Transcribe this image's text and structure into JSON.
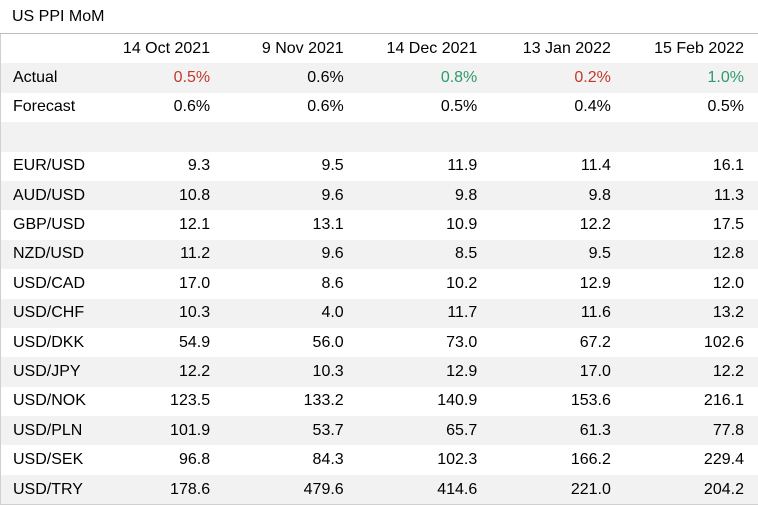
{
  "title": "US PPI MoM",
  "columns": [
    "14 Oct 2021",
    "9 Nov 2021",
    "14 Dec 2021",
    "13 Jan 2022",
    "15 Feb 2022"
  ],
  "colors": {
    "up": "#2e9a6a",
    "down": "#c0392b",
    "neutral": "#000000",
    "row_shade": "#f2f2f2"
  },
  "actual": {
    "label": "Actual",
    "values": [
      "0.5%",
      "0.6%",
      "0.8%",
      "0.2%",
      "1.0%"
    ],
    "tones": [
      "down",
      "neutral",
      "up",
      "down",
      "up"
    ]
  },
  "forecast": {
    "label": "Forecast",
    "values": [
      "0.6%",
      "0.6%",
      "0.5%",
      "0.4%",
      "0.5%"
    ]
  },
  "pairs": [
    {
      "label": "EUR/USD",
      "values": [
        "9.3",
        "9.5",
        "11.9",
        "11.4",
        "16.1"
      ]
    },
    {
      "label": "AUD/USD",
      "values": [
        "10.8",
        "9.6",
        "9.8",
        "9.8",
        "11.3"
      ]
    },
    {
      "label": "GBP/USD",
      "values": [
        "12.1",
        "13.1",
        "10.9",
        "12.2",
        "17.5"
      ]
    },
    {
      "label": "NZD/USD",
      "values": [
        "11.2",
        "9.6",
        "8.5",
        "9.5",
        "12.8"
      ]
    },
    {
      "label": "USD/CAD",
      "values": [
        "17.0",
        "8.6",
        "10.2",
        "12.9",
        "12.0"
      ]
    },
    {
      "label": "USD/CHF",
      "values": [
        "10.3",
        "4.0",
        "11.7",
        "11.6",
        "13.2"
      ]
    },
    {
      "label": "USD/DKK",
      "values": [
        "54.9",
        "56.0",
        "73.0",
        "67.2",
        "102.6"
      ]
    },
    {
      "label": "USD/JPY",
      "values": [
        "12.2",
        "10.3",
        "12.9",
        "17.0",
        "12.2"
      ]
    },
    {
      "label": "USD/NOK",
      "values": [
        "123.5",
        "133.2",
        "140.9",
        "153.6",
        "216.1"
      ]
    },
    {
      "label": "USD/PLN",
      "values": [
        "101.9",
        "53.7",
        "65.7",
        "61.3",
        "77.8"
      ]
    },
    {
      "label": "USD/SEK",
      "values": [
        "96.8",
        "84.3",
        "102.3",
        "166.2",
        "229.4"
      ]
    },
    {
      "label": "USD/TRY",
      "values": [
        "178.6",
        "479.6",
        "414.6",
        "221.0",
        "204.2"
      ]
    }
  ]
}
